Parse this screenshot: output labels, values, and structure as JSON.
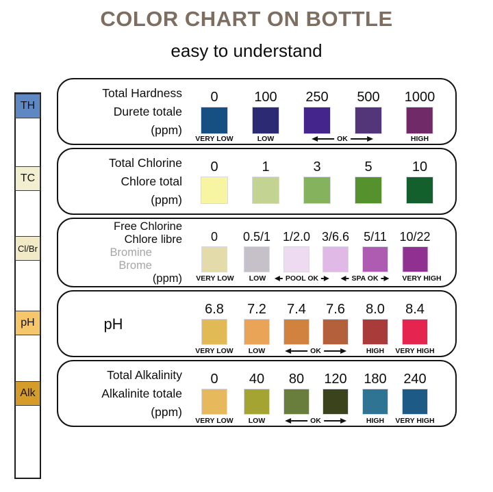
{
  "title": "COLOR CHART ON BOTTLE",
  "subtitle": "easy to understand",
  "theme": {
    "title_color": "#7d6e5f",
    "muted_text": "#a6a6a6",
    "border": "#141414"
  },
  "strip": {
    "pads": [
      {
        "id": "th",
        "label": "TH",
        "color": "#5d88c3"
      },
      {
        "id": "tc",
        "label": "TC",
        "color": "#f2eed0"
      },
      {
        "id": "cl-br",
        "label": "Cl/Br",
        "color": "#f0eac6"
      },
      {
        "id": "ph",
        "label": "pH",
        "color": "#f5c76a"
      },
      {
        "id": "alk",
        "label": "Alk",
        "color": "#d59c29"
      }
    ]
  },
  "panels": [
    {
      "id": "total-hardness",
      "title_lines": [
        {
          "text": "Total Hardness",
          "muted": false
        },
        {
          "text": "Durete totale",
          "muted": false
        },
        {
          "text": "(ppm)",
          "muted": false
        }
      ],
      "values": [
        "0",
        "100",
        "250",
        "500",
        "1000"
      ],
      "swatches": [
        "#165083",
        "#2b2a72",
        "#44258b",
        "#523679",
        "#6f2a67"
      ],
      "tags": [
        {
          "text": "VERY LOW"
        },
        {
          "text": "LOW"
        },
        {
          "text": "OK",
          "arrows": "long"
        },
        {
          "text": "HIGH"
        }
      ]
    },
    {
      "id": "total-chlorine",
      "title_lines": [
        {
          "text": "Total Chlorine",
          "muted": false
        },
        {
          "text": "Chlore total",
          "muted": false
        },
        {
          "text": "(ppm)",
          "muted": false
        }
      ],
      "values": [
        "0",
        "1",
        "3",
        "5",
        "10"
      ],
      "swatches": [
        "#f8f5a2",
        "#c3d492",
        "#85b25d",
        "#55912c",
        "#14602c"
      ],
      "tags": []
    },
    {
      "id": "free-chlorine",
      "title_lines": [
        {
          "text": "Free Chlorine",
          "muted": false
        },
        {
          "text": "Chlore libre",
          "muted": false
        },
        {
          "text": "Bromine",
          "muted": true
        },
        {
          "text": "Brome",
          "muted": true
        },
        {
          "text": "(ppm)",
          "muted": false
        }
      ],
      "values": [
        "0",
        "0.5/1",
        "1/2.0",
        "3/6.6",
        "5/11",
        "10/22"
      ],
      "swatches": [
        "#e3dcaa",
        "#c6c1c8",
        "#efdbf1",
        "#e0b9e6",
        "#ae5cb2",
        "#903091"
      ],
      "tags": [
        {
          "text": "VERY LOW"
        },
        {
          "text": "LOW"
        },
        {
          "text": "POOL OK",
          "arrows": "short"
        },
        {
          "text": "SPA OK",
          "arrows": "short"
        },
        {
          "text": "VERY HIGH"
        }
      ]
    },
    {
      "id": "ph",
      "title_lines": [
        {
          "text": "pH",
          "muted": false
        }
      ],
      "values": [
        "6.8",
        "7.2",
        "7.4",
        "7.6",
        "8.0",
        "8.4"
      ],
      "swatches": [
        "#e2ba55",
        "#e9a458",
        "#d2823f",
        "#b4603a",
        "#a93b3a",
        "#e52450"
      ],
      "tags": [
        {
          "text": "VERY LOW"
        },
        {
          "text": "LOW"
        },
        {
          "text": "OK",
          "arrows": "long"
        },
        {
          "text": "HIGH"
        },
        {
          "text": "VERY HIGH"
        }
      ]
    },
    {
      "id": "total-alkalinity",
      "title_lines": [
        {
          "text": "Total Alkalinity",
          "muted": false
        },
        {
          "text": "Alkalinite totale",
          "muted": false
        },
        {
          "text": "(ppm)",
          "muted": false
        }
      ],
      "values": [
        "0",
        "40",
        "80",
        "120",
        "180",
        "240"
      ],
      "swatches": [
        "#e6ba5c",
        "#a4a433",
        "#697d3d",
        "#3b431d",
        "#2f7492",
        "#1e5a86"
      ],
      "tags": [
        {
          "text": "VERY LOW"
        },
        {
          "text": "LOW"
        },
        {
          "text": "OK",
          "arrows": "long"
        },
        {
          "text": "HIGH"
        },
        {
          "text": "VERY HIGH"
        }
      ]
    }
  ]
}
